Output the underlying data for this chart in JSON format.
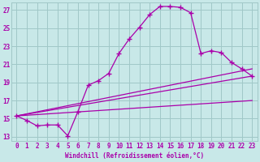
{
  "xlabel": "Windchill (Refroidissement éolien,°C)",
  "ylabel": "",
  "bg_color": "#c8e8e8",
  "grid_color": "#a0c8c8",
  "line_color": "#aa00aa",
  "xlim": [
    -0.5,
    23.5
  ],
  "ylim": [
    12.5,
    27.8
  ],
  "xticks": [
    0,
    1,
    2,
    3,
    4,
    5,
    6,
    7,
    8,
    9,
    10,
    11,
    12,
    13,
    14,
    15,
    16,
    17,
    18,
    19,
    20,
    21,
    22,
    23
  ],
  "yticks": [
    13,
    15,
    17,
    19,
    21,
    23,
    25,
    27
  ],
  "line1_x": [
    0,
    1,
    2,
    3,
    4,
    5,
    6,
    7,
    8,
    9,
    10,
    11,
    12,
    13,
    14,
    15,
    16,
    17,
    18,
    19,
    20,
    21,
    22,
    23
  ],
  "line1_y": [
    15.3,
    14.8,
    14.2,
    14.3,
    14.3,
    13.1,
    15.8,
    18.7,
    19.2,
    20.0,
    22.2,
    23.8,
    25.1,
    26.5,
    27.4,
    27.4,
    27.3,
    26.7,
    22.2,
    22.5,
    22.3,
    21.2,
    20.5,
    19.7
  ],
  "line2_x": [
    0,
    23
  ],
  "line2_y": [
    15.3,
    19.7
  ],
  "line3_x": [
    0,
    23
  ],
  "line3_y": [
    15.3,
    17.0
  ],
  "line4_x": [
    0,
    23
  ],
  "line4_y": [
    15.3,
    20.5
  ]
}
